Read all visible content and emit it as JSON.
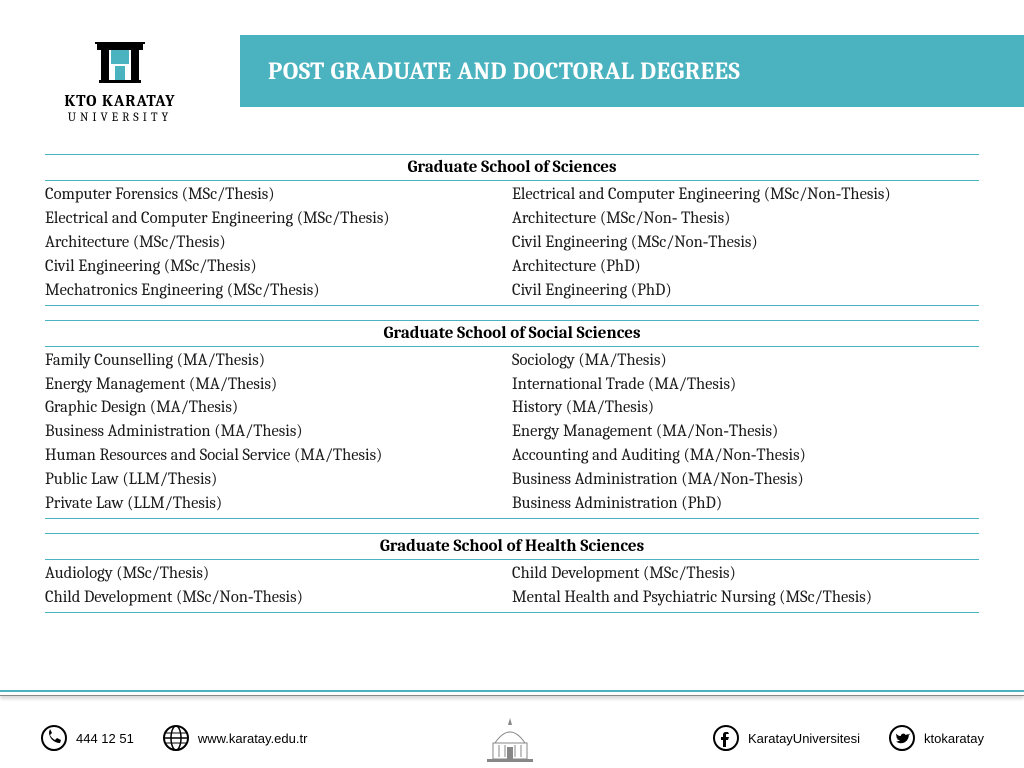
{
  "colors": {
    "accent": "#4bb3bf",
    "text": "#1a1a1a",
    "white": "#ffffff"
  },
  "logo": {
    "line1": "KTO KARATAY",
    "line2": "UNIVERSITY"
  },
  "title": "POST GRADUATE AND DOCTORAL DEGREES",
  "sections": [
    {
      "heading": "Graduate School of Sciences",
      "left": [
        "Computer Forensics (MSc/Thesis)",
        "Electrical and Computer Engineering (MSc/Thesis)",
        "Architecture (MSc/Thesis)",
        "Civil Engineering (MSc/Thesis)",
        "Mechatronics Engineering (MSc/Thesis)"
      ],
      "right": [
        "Electrical and Computer Engineering (MSc/Non‑Thesis)",
        "Architecture (MSc/Non‑ Thesis)",
        "Civil Engineering (MSc/Non‑Thesis)",
        "Architecture (PhD)",
        "Civil Engineering (PhD)"
      ]
    },
    {
      "heading": "Graduate School of Social Sciences",
      "left": [
        "Family Counselling (MA/Thesis)",
        "Energy Management (MA/Thesis)",
        "Graphic Design (MA/Thesis)",
        "Business Administration (MA/Thesis)",
        "Human Resources and Social Service (MA/Thesis)",
        "Public Law (LLM/Thesis)",
        "Private Law (LLM/Thesis)"
      ],
      "right": [
        "Sociology (MA/Thesis)",
        "International Trade (MA/Thesis)",
        "History (MA/Thesis)",
        "Energy Management (MA/Non‑Thesis)",
        "Accounting and Auditing (MA/Non‑Thesis)",
        "Business Administration (MA/Non‑Thesis)",
        "Business Administration (PhD)"
      ]
    },
    {
      "heading": "Graduate School of Health Sciences",
      "left": [
        "Audiology (MSc/Thesis)",
        "Child Development  (MSc/Non‑Thesis)"
      ],
      "right": [
        "Child Development  (MSc/Thesis)",
        "Mental Health and Psychiatric Nursing (MSc/Thesis)"
      ]
    }
  ],
  "footer": {
    "phone": "444 12 51",
    "website": "www.karatay.edu.tr",
    "facebook": "KaratayUniversitesi",
    "twitter": "ktokaratay"
  }
}
